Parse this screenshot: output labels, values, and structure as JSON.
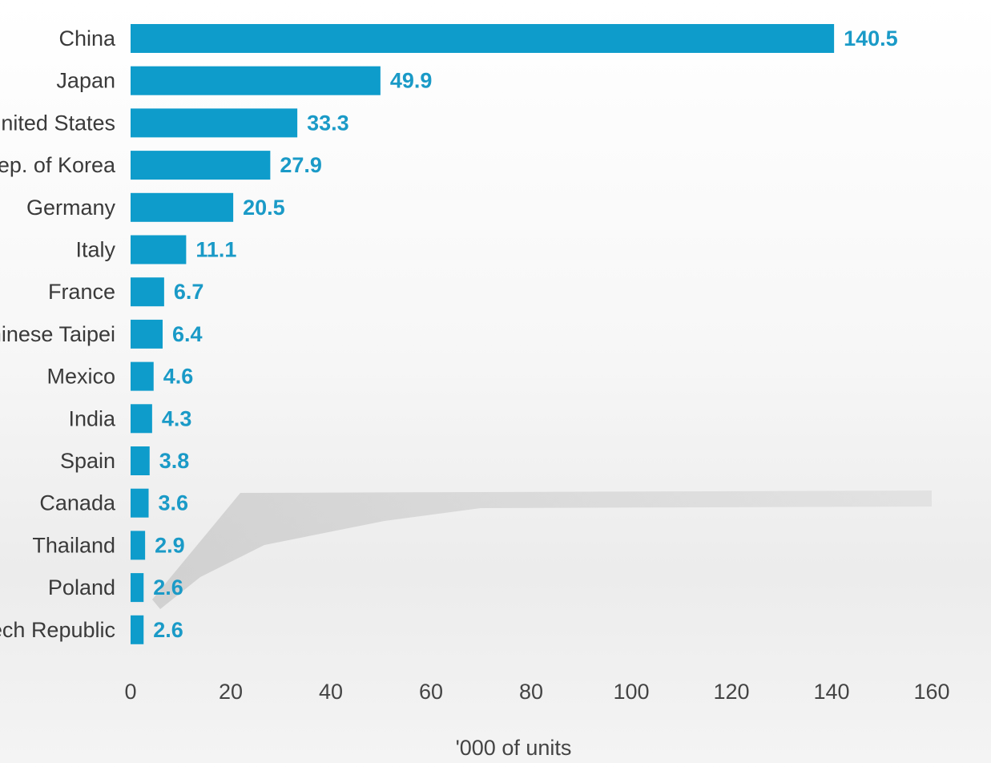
{
  "chart_data": {
    "type": "bar",
    "orientation": "horizontal",
    "categories": [
      "China",
      "Japan",
      "United States",
      "Rep. of Korea",
      "Germany",
      "Italy",
      "France",
      "Chinese Taipei",
      "Mexico",
      "India",
      "Spain",
      "Canada",
      "Thailand",
      "Poland",
      "Czech Republic"
    ],
    "values": [
      140.5,
      49.9,
      33.3,
      27.9,
      20.5,
      11.1,
      6.7,
      6.4,
      4.6,
      4.3,
      3.8,
      3.6,
      2.9,
      2.6,
      2.6
    ],
    "value_labels": [
      "140.5",
      "49.9",
      "33.3",
      "27.9",
      "20.5",
      "11.1",
      "6.7",
      "6.4",
      "4.6",
      "4.3",
      "3.8",
      "3.6",
      "2.9",
      "2.6",
      "2.6"
    ],
    "title": "",
    "xlabel": "'000 of units",
    "ylabel": "",
    "xlim": [
      0,
      160
    ],
    "xticks": [
      "0",
      "20",
      "40",
      "60",
      "80",
      "100",
      "120",
      "140",
      "160"
    ],
    "grid": false,
    "legend": "none",
    "bar_color": "#0e9ccb",
    "value_label_color": "#1a9ac7"
  }
}
